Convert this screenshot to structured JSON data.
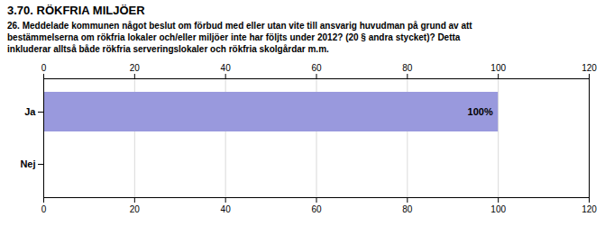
{
  "chart_data": {
    "type": "bar",
    "orientation": "horizontal",
    "title": "3.70. RÖKFRIA MILJÖER",
    "subtitle": "26. Meddelade kommunen något beslut om förbud med eller utan vite till ansvarig huvudman på grund av att\nbestämmelserna om rökfria lokaler och/eller miljöer inte har följts under 2012? (20 § andra stycket)? Detta\ninkluderar alltså både rökfria serveringslokaler och rökfria skolgårdar m.m.",
    "categories": [
      "Ja",
      "Nej"
    ],
    "values": [
      100,
      0
    ],
    "value_labels": [
      "100%",
      null
    ],
    "data_labels": true,
    "color": "#9999dd",
    "xlim": [
      0,
      120
    ],
    "xticks": [
      0,
      20,
      40,
      60,
      80,
      100,
      120
    ],
    "grid": true
  }
}
